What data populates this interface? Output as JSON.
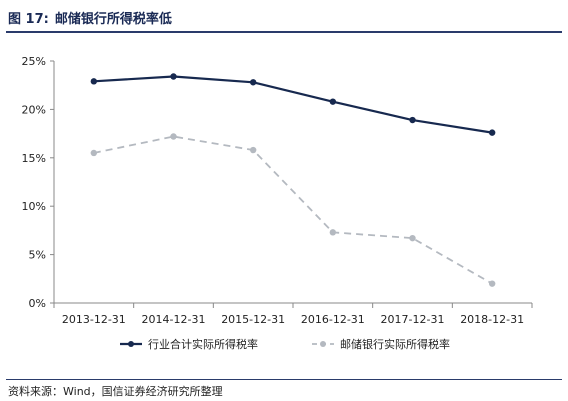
{
  "figure": {
    "number": "图 17:",
    "title": "邮储银行所得税率低"
  },
  "source": "资料来源：Wind，国信证券经济研究所整理",
  "chart_data": {
    "type": "line",
    "categories": [
      "2013-12-31",
      "2014-12-31",
      "2015-12-31",
      "2016-12-31",
      "2017-12-31",
      "2018-12-31"
    ],
    "series": [
      {
        "name": "行业合计实际所得税率",
        "values": [
          22.9,
          23.4,
          22.8,
          20.8,
          18.9,
          17.6
        ],
        "color": "#17294f",
        "style": "solid"
      },
      {
        "name": "邮储银行实际所得税率",
        "values": [
          15.5,
          17.2,
          15.8,
          7.3,
          6.7,
          2.0
        ],
        "color": "#b4b9c0",
        "style": "dashed"
      }
    ],
    "yticks": [
      "0%",
      "5%",
      "10%",
      "15%",
      "20%",
      "25%"
    ],
    "ylim": [
      0,
      25
    ],
    "grid": false,
    "legend": "bottom"
  }
}
